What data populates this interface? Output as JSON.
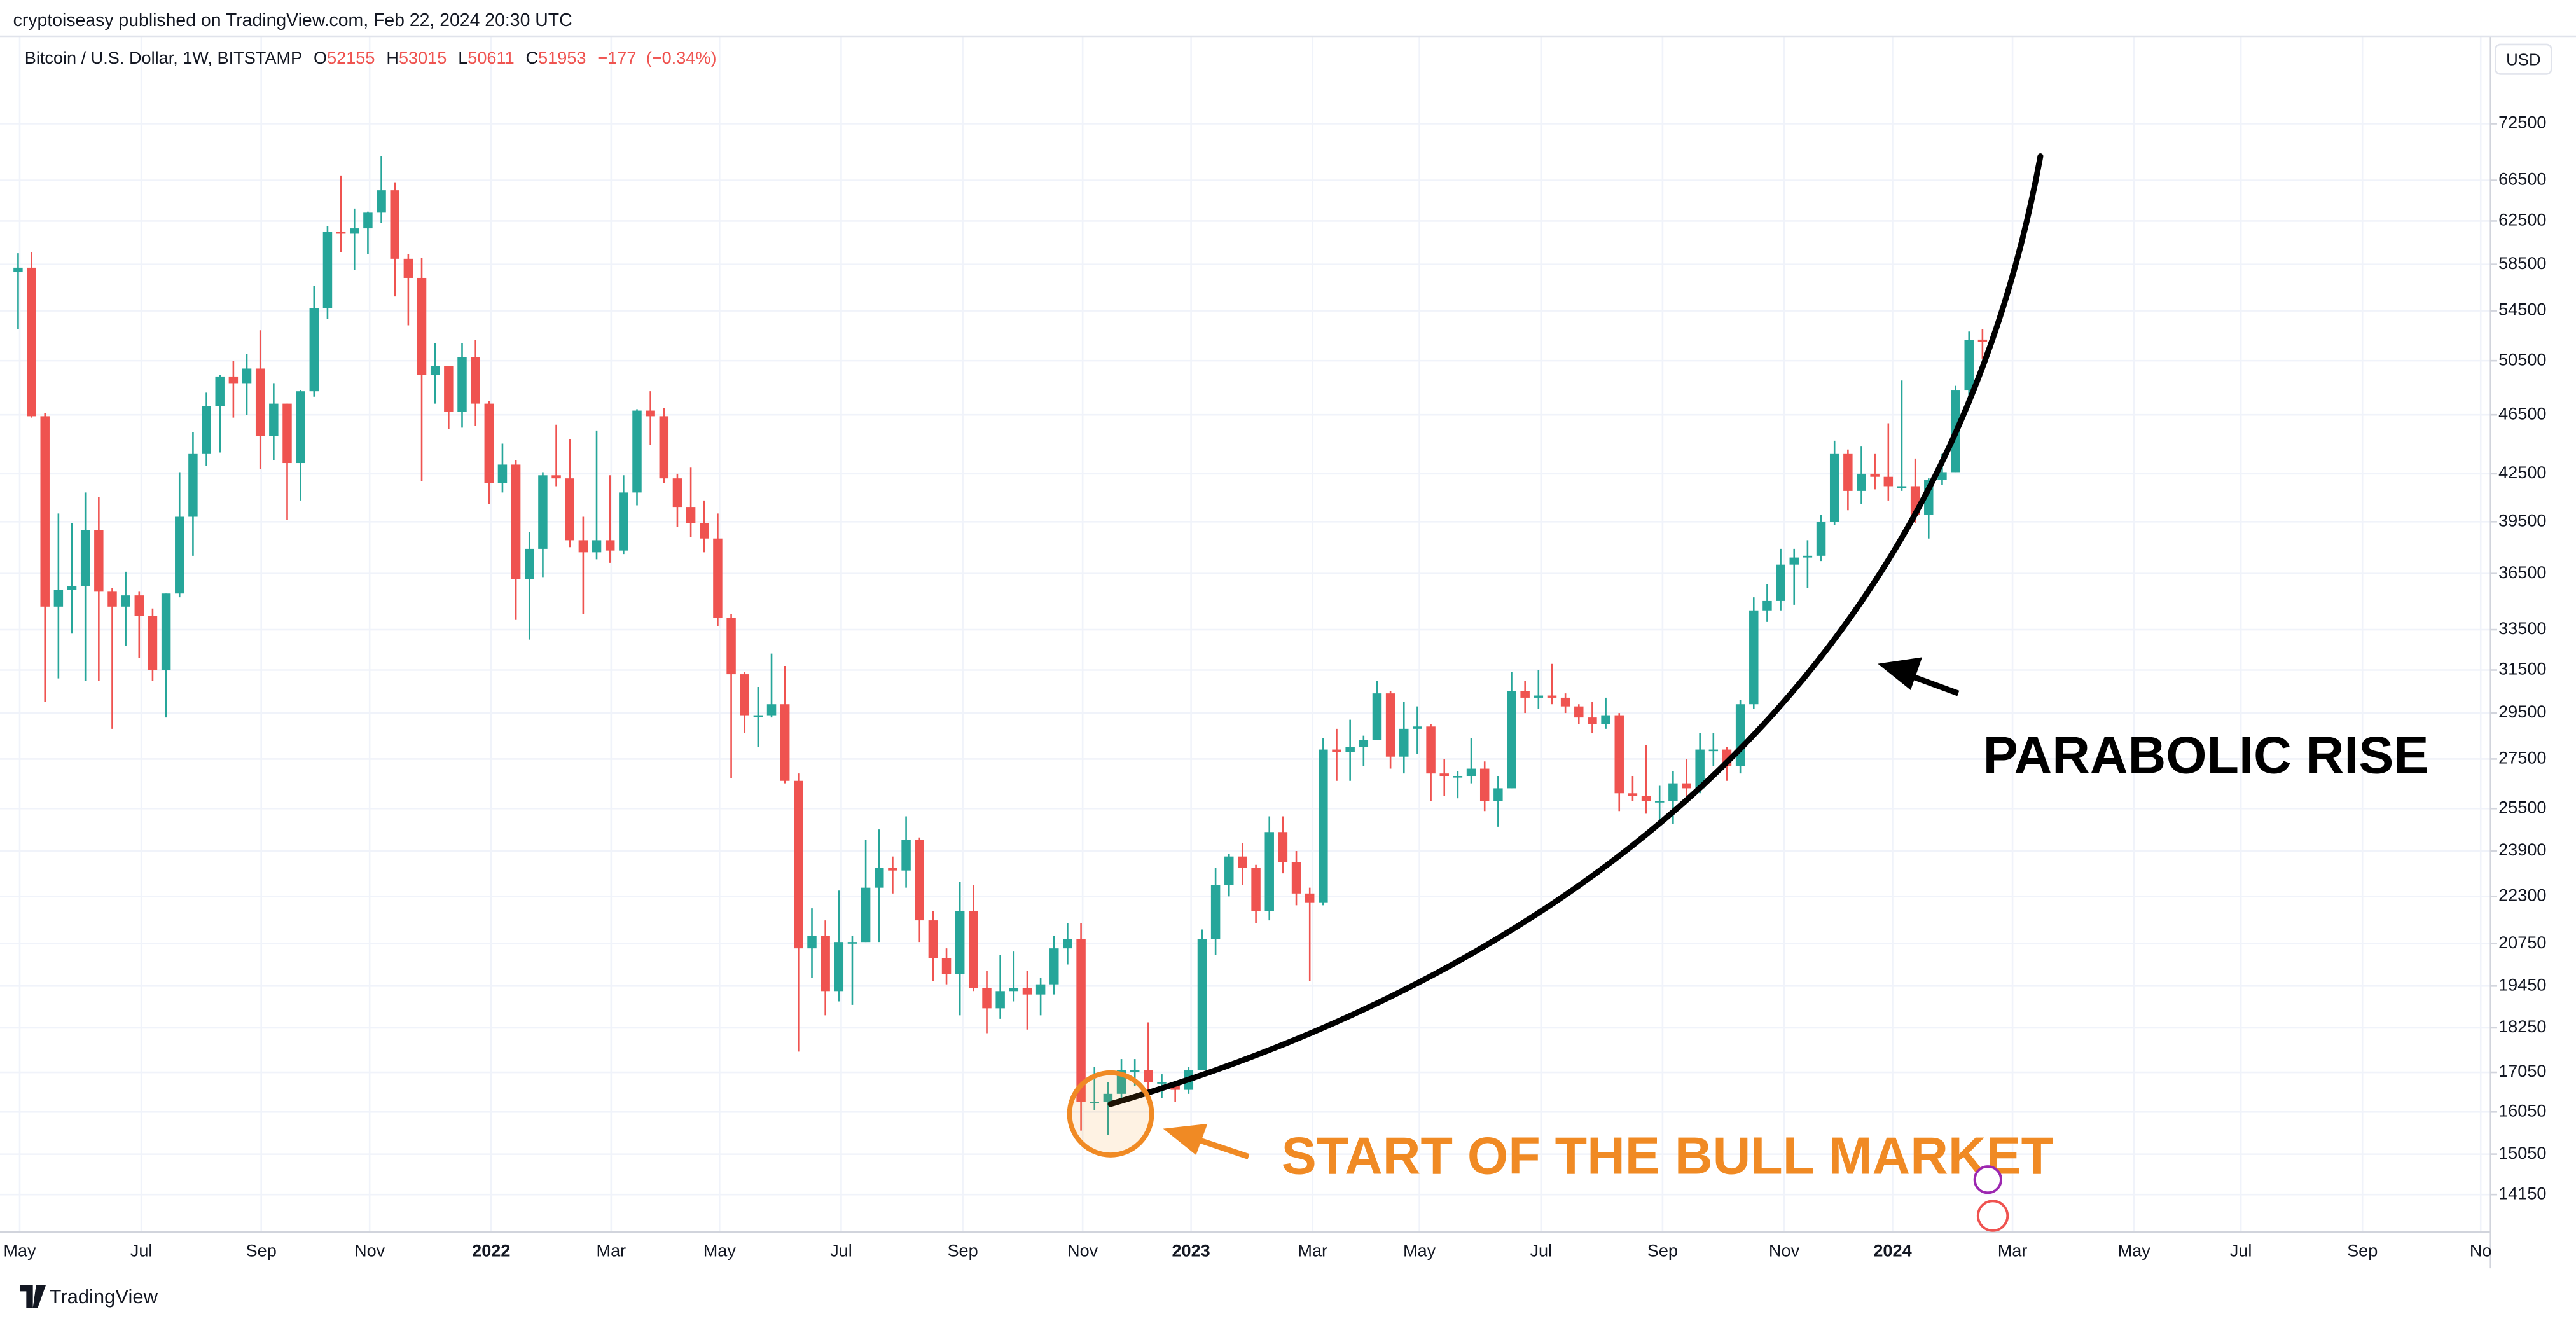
{
  "header": {
    "byline": "cryptoiseasy published on TradingView.com, Feb 22, 2024 20:30 UTC",
    "symbol": "Bitcoin / U.S. Dollar, 1W, BITSTAMP",
    "currency": "USD",
    "brand": "TradingView"
  },
  "chart_data": {
    "type": "candlestick",
    "log_scale": true,
    "grid": true,
    "up_color": "#26a69a",
    "down_color": "#ef5350",
    "legend": {
      "open": {
        "prefix": "O",
        "value": 52155
      },
      "high": {
        "prefix": "H",
        "value": 53015
      },
      "low": {
        "prefix": "L",
        "value": 50611
      },
      "close": {
        "prefix": "C",
        "value": 51953
      },
      "change": {
        "value": -177,
        "label": "−177"
      },
      "change_pct": {
        "value": -0.34,
        "label": "(−0.34%)"
      }
    },
    "annotations": [
      "PARABOLIC RISE",
      "START OF THE BULL MARKET"
    ],
    "ylim": [
      13360,
      78800
    ],
    "yticks": [
      14150,
      15050,
      16050,
      17050,
      18250,
      19450,
      20750,
      22300,
      23900,
      25500,
      27500,
      29500,
      31500,
      33500,
      36500,
      39500,
      42500,
      46500,
      50500,
      54500,
      58500,
      62500,
      66500,
      72500
    ],
    "x_labels": [
      "May",
      "Jul",
      "Sep",
      "Nov",
      "2022",
      "Mar",
      "May",
      "Jul",
      "Sep",
      "Nov",
      "2023",
      "Mar",
      "May",
      "Jul",
      "Sep",
      "Nov",
      "2024",
      "Mar",
      "May",
      "Jul",
      "Sep",
      "No"
    ],
    "ohlc": [
      [
        57800,
        59500,
        53000,
        58200
      ],
      [
        58200,
        59600,
        46300,
        46400
      ],
      [
        46400,
        46600,
        30000,
        34700
      ],
      [
        34700,
        40000,
        31100,
        35600
      ],
      [
        35600,
        39400,
        33300,
        35800
      ],
      [
        35800,
        41300,
        31000,
        39000
      ],
      [
        39000,
        41000,
        31000,
        35500
      ],
      [
        35500,
        35700,
        28800,
        34700
      ],
      [
        34700,
        36600,
        32700,
        35300
      ],
      [
        35300,
        35500,
        32100,
        34200
      ],
      [
        34200,
        34600,
        31000,
        31500
      ],
      [
        31500,
        35400,
        29300,
        35400
      ],
      [
        35400,
        42600,
        35200,
        39800
      ],
      [
        39800,
        45300,
        37500,
        43800
      ],
      [
        43800,
        48100,
        43000,
        47100
      ],
      [
        47100,
        49400,
        43900,
        49300
      ],
      [
        49300,
        50500,
        46300,
        48800
      ],
      [
        48800,
        51000,
        46500,
        49900
      ],
      [
        49900,
        52900,
        42800,
        45000
      ],
      [
        45000,
        48800,
        43400,
        47300
      ],
      [
        47300,
        47300,
        39600,
        43200
      ],
      [
        43200,
        48300,
        40800,
        48200
      ],
      [
        48200,
        56600,
        47800,
        54700
      ],
      [
        54700,
        62000,
        53800,
        61500
      ],
      [
        61500,
        67000,
        59600,
        61300
      ],
      [
        61300,
        63700,
        58000,
        61800
      ],
      [
        61800,
        63400,
        59400,
        63300
      ],
      [
        63300,
        69000,
        62300,
        65500
      ],
      [
        65500,
        66300,
        55700,
        59000
      ],
      [
        59000,
        59400,
        53300,
        57300
      ],
      [
        57300,
        59100,
        42000,
        49400
      ],
      [
        49400,
        51900,
        47300,
        50100
      ],
      [
        50100,
        50100,
        45500,
        46700
      ],
      [
        46700,
        51900,
        45600,
        50800
      ],
      [
        50800,
        52100,
        45700,
        47300
      ],
      [
        47300,
        47500,
        40600,
        41900
      ],
      [
        41900,
        44500,
        41300,
        43100
      ],
      [
        43100,
        43400,
        34000,
        36200
      ],
      [
        36200,
        38900,
        33000,
        37900
      ],
      [
        37900,
        42600,
        36300,
        42400
      ],
      [
        42400,
        45800,
        41700,
        42200
      ],
      [
        42200,
        44800,
        38000,
        38400
      ],
      [
        38400,
        39800,
        34300,
        37700
      ],
      [
        37700,
        45400,
        37300,
        38400
      ],
      [
        38400,
        42400,
        37100,
        37800
      ],
      [
        37800,
        42400,
        37600,
        41300
      ],
      [
        41300,
        46900,
        40500,
        46800
      ],
      [
        46800,
        48200,
        44400,
        46400
      ],
      [
        46400,
        47000,
        41900,
        42200
      ],
      [
        42200,
        42500,
        39200,
        40400
      ],
      [
        40400,
        42900,
        38600,
        39400
      ],
      [
        39400,
        40800,
        37700,
        38500
      ],
      [
        38500,
        40000,
        33700,
        34100
      ],
      [
        34100,
        34300,
        26700,
        31300
      ],
      [
        31300,
        31400,
        28600,
        29400
      ],
      [
        29400,
        30700,
        28000,
        29400
      ],
      [
        29400,
        32300,
        29300,
        29900
      ],
      [
        29900,
        31700,
        26500,
        26600
      ],
      [
        26600,
        26900,
        17600,
        20600
      ],
      [
        20600,
        21900,
        19700,
        21000
      ],
      [
        21000,
        21500,
        18600,
        19300
      ],
      [
        19300,
        22500,
        19000,
        20800
      ],
      [
        20800,
        21000,
        18900,
        20800
      ],
      [
        20800,
        24300,
        20800,
        22600
      ],
      [
        22600,
        24700,
        20800,
        23300
      ],
      [
        23300,
        23700,
        22400,
        23200
      ],
      [
        23200,
        25200,
        22600,
        24300
      ],
      [
        24300,
        24400,
        20800,
        21500
      ],
      [
        21500,
        21800,
        19600,
        20300
      ],
      [
        20300,
        20600,
        19500,
        19800
      ],
      [
        19800,
        22800,
        18600,
        21800
      ],
      [
        21800,
        22700,
        19300,
        19400
      ],
      [
        19400,
        19900,
        18100,
        18800
      ],
      [
        18800,
        20400,
        18500,
        19300
      ],
      [
        19300,
        20500,
        19000,
        19400
      ],
      [
        19400,
        19900,
        18200,
        19200
      ],
      [
        19200,
        19700,
        18600,
        19500
      ],
      [
        19500,
        21000,
        19200,
        20600
      ],
      [
        20600,
        21400,
        20100,
        20900
      ],
      [
        20900,
        21400,
        15600,
        16300
      ],
      [
        16300,
        17200,
        16100,
        16300
      ],
      [
        16300,
        16800,
        15500,
        16500
      ],
      [
        16500,
        17400,
        16400,
        17100
      ],
      [
        17100,
        17400,
        16700,
        17100
      ],
      [
        17100,
        18400,
        16500,
        16800
      ],
      [
        16800,
        17000,
        16400,
        16800
      ],
      [
        16800,
        16800,
        16300,
        16600
      ],
      [
        16600,
        17200,
        16500,
        17100
      ],
      [
        17100,
        21200,
        17100,
        20900
      ],
      [
        20900,
        23300,
        20400,
        22700
      ],
      [
        22700,
        23800,
        22300,
        23700
      ],
      [
        23700,
        24200,
        22700,
        23300
      ],
      [
        23300,
        23400,
        21400,
        21800
      ],
      [
        21800,
        25200,
        21500,
        24600
      ],
      [
        24600,
        25200,
        23100,
        23500
      ],
      [
        23500,
        23900,
        22000,
        22400
      ],
      [
        22400,
        22600,
        19600,
        22100
      ],
      [
        22100,
        28400,
        22000,
        27900
      ],
      [
        27900,
        28800,
        26600,
        27800
      ],
      [
        27800,
        29200,
        26600,
        28000
      ],
      [
        28000,
        28500,
        27200,
        28300
      ],
      [
        28300,
        31000,
        28300,
        30400
      ],
      [
        30400,
        30500,
        27100,
        27600
      ],
      [
        27600,
        30000,
        26900,
        28800
      ],
      [
        28800,
        29800,
        27700,
        28900
      ],
      [
        28900,
        29000,
        25800,
        26900
      ],
      [
        26900,
        27500,
        26000,
        26800
      ],
      [
        26800,
        27000,
        25900,
        26800
      ],
      [
        26800,
        28400,
        26500,
        27100
      ],
      [
        27100,
        27400,
        25400,
        25800
      ],
      [
        25800,
        26800,
        24800,
        26300
      ],
      [
        26300,
        31400,
        26300,
        30500
      ],
      [
        30500,
        31000,
        29500,
        30200
      ],
      [
        30200,
        31500,
        29700,
        30300
      ],
      [
        30300,
        31800,
        29900,
        30200
      ],
      [
        30200,
        30400,
        29500,
        29800
      ],
      [
        29800,
        29900,
        29000,
        29300
      ],
      [
        29300,
        30000,
        28600,
        29000
      ],
      [
        29000,
        30200,
        28800,
        29400
      ],
      [
        29400,
        29500,
        25400,
        26100
      ],
      [
        26100,
        26800,
        25800,
        26000
      ],
      [
        26000,
        28100,
        25300,
        25800
      ],
      [
        25800,
        26400,
        24900,
        25800
      ],
      [
        25800,
        27000,
        24900,
        26500
      ],
      [
        26500,
        27500,
        26000,
        26300
      ],
      [
        26300,
        28600,
        26100,
        27900
      ],
      [
        27900,
        28600,
        27200,
        27900
      ],
      [
        27900,
        28000,
        26600,
        27200
      ],
      [
        27200,
        30100,
        26900,
        29900
      ],
      [
        29900,
        35200,
        29700,
        34500
      ],
      [
        34500,
        35900,
        33900,
        35000
      ],
      [
        35000,
        37900,
        34500,
        37000
      ],
      [
        37000,
        37900,
        34800,
        37400
      ],
      [
        37400,
        38400,
        35700,
        37500
      ],
      [
        37500,
        39900,
        37200,
        39500
      ],
      [
        39500,
        44700,
        39300,
        43800
      ],
      [
        43800,
        44100,
        40200,
        41400
      ],
      [
        41400,
        44300,
        40600,
        42500
      ],
      [
        42500,
        43800,
        41500,
        42300
      ],
      [
        42300,
        45900,
        40800,
        41700
      ],
      [
        41700,
        49000,
        41400,
        41700
      ],
      [
        41700,
        43500,
        39400,
        39900
      ],
      [
        39900,
        42200,
        38500,
        42100
      ],
      [
        42100,
        43800,
        41800,
        42600
      ],
      [
        42600,
        48600,
        42600,
        48300
      ],
      [
        48300,
        52800,
        47700,
        52130
      ],
      [
        52155,
        53015,
        50611,
        51953
      ]
    ]
  }
}
